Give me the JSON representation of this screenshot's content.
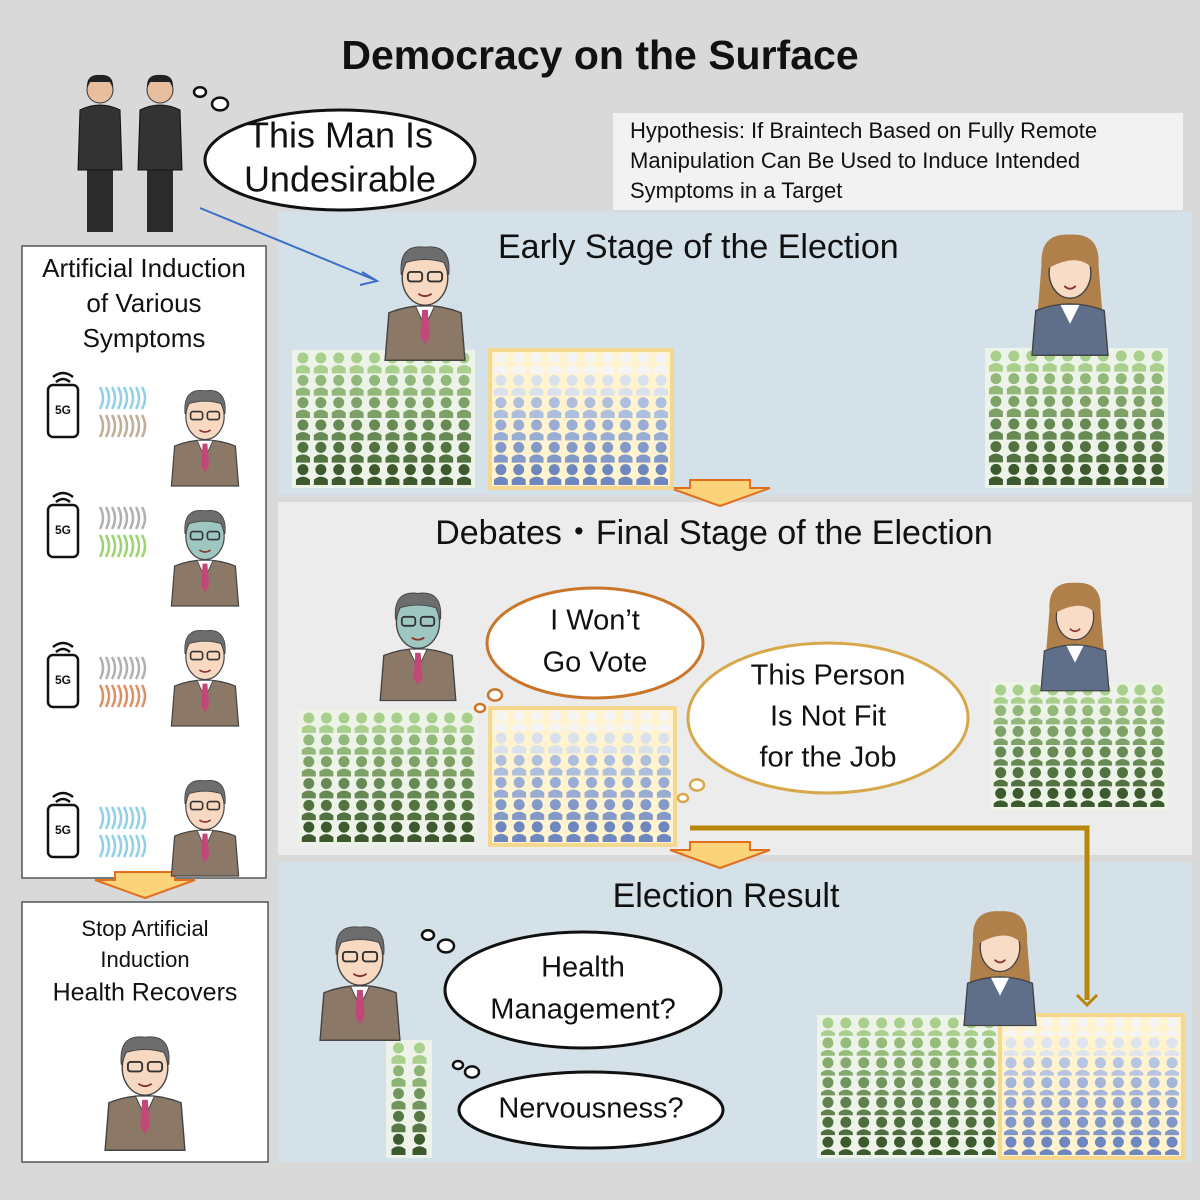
{
  "title": "Democracy on the Surface",
  "top_bubble": {
    "lines": [
      "This Man Is",
      "Undesirable"
    ]
  },
  "hypothesis": {
    "lines": [
      "Hypothesis: If Braintech Based on Fully Remote",
      "Manipulation Can Be Used to Induce Intended",
      "Symptoms in a Target"
    ]
  },
  "symptoms_panel": {
    "title_lines": [
      "Artificial Induction",
      "of Various",
      "Symptoms"
    ],
    "phones": [
      "5G",
      "5G",
      "5G",
      "5G"
    ]
  },
  "recovery_panel": {
    "lines": [
      "Stop Artificial",
      "Induction",
      "Health Recovers"
    ]
  },
  "stages": [
    {
      "title": "Early Stage of the Election"
    },
    {
      "title": "Debates・Final Stage of the Election",
      "bubbles": [
        {
          "lines": [
            "I Won’t",
            "Go Vote"
          ]
        },
        {
          "lines": [
            "This Person",
            "Is Not Fit",
            "for the Job"
          ]
        }
      ]
    },
    {
      "title": "Election Result",
      "bubbles": [
        {
          "lines": [
            "Health",
            "Management?"
          ]
        },
        {
          "lines": [
            "Nervousness?"
          ]
        }
      ]
    }
  ]
}
